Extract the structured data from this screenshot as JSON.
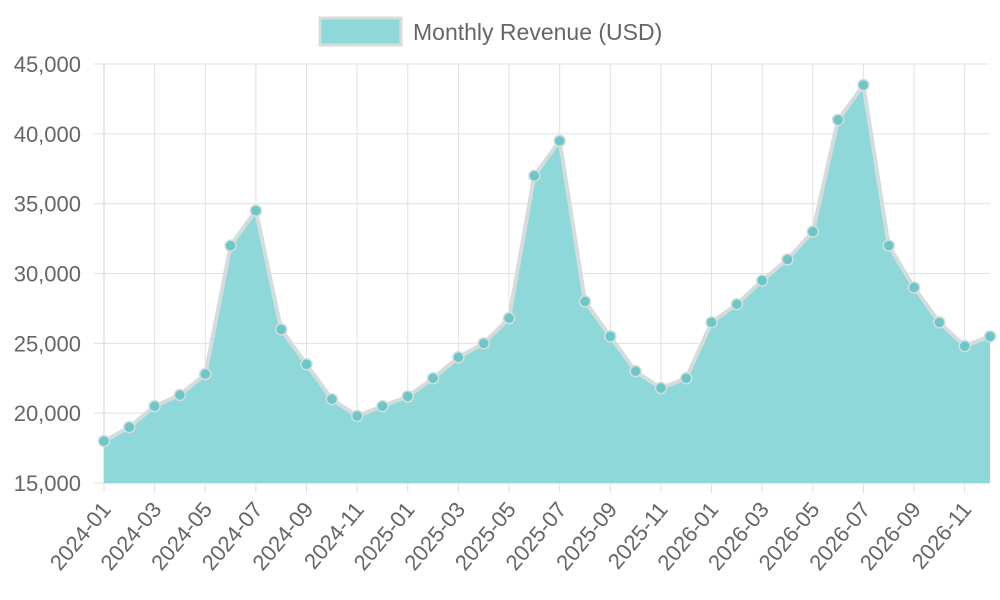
{
  "chart_data": {
    "type": "area",
    "x": [
      "2024-01",
      "2024-02",
      "2024-03",
      "2024-04",
      "2024-05",
      "2024-06",
      "2024-07",
      "2024-08",
      "2024-09",
      "2024-10",
      "2024-11",
      "2024-12",
      "2025-01",
      "2025-02",
      "2025-03",
      "2025-04",
      "2025-05",
      "2025-06",
      "2025-07",
      "2025-08",
      "2025-09",
      "2025-10",
      "2025-11",
      "2025-12",
      "2026-01",
      "2026-02",
      "2026-03",
      "2026-04",
      "2026-05",
      "2026-06",
      "2026-07",
      "2026-08",
      "2026-09",
      "2026-10",
      "2026-11",
      "2026-12"
    ],
    "x_tick_labels": [
      "2024-01",
      "2024-03",
      "2024-05",
      "2024-07",
      "2024-09",
      "2024-11",
      "2025-01",
      "2025-03",
      "2025-05",
      "2025-07",
      "2025-09",
      "2025-11",
      "2026-01",
      "2026-03",
      "2026-05",
      "2026-07",
      "2026-09",
      "2026-11"
    ],
    "series": [
      {
        "name": "Monthly Revenue (USD)",
        "values": [
          18000,
          19000,
          20500,
          21300,
          22800,
          32000,
          34500,
          26000,
          23500,
          21000,
          19800,
          20500,
          21200,
          22500,
          24000,
          25000,
          26800,
          37000,
          39500,
          28000,
          25500,
          23000,
          21800,
          22500,
          26500,
          27800,
          29500,
          31000,
          33000,
          41000,
          43500,
          32000,
          29000,
          26500,
          24800,
          25500
        ]
      }
    ],
    "ylim": [
      15000,
      45000
    ],
    "y_ticks": [
      15000,
      20000,
      25000,
      30000,
      35000,
      40000,
      45000
    ],
    "y_tick_labels": [
      "15,000",
      "20,000",
      "25,000",
      "30,000",
      "35,000",
      "40,000",
      "45,000"
    ],
    "grid": true,
    "legend_position": "top-center",
    "colors": {
      "fill": "#8fd8d9",
      "line": "#d5dcdc",
      "point": "#6cc7c9",
      "grid": "#e0e0e0",
      "axis_text": "#666666"
    }
  }
}
